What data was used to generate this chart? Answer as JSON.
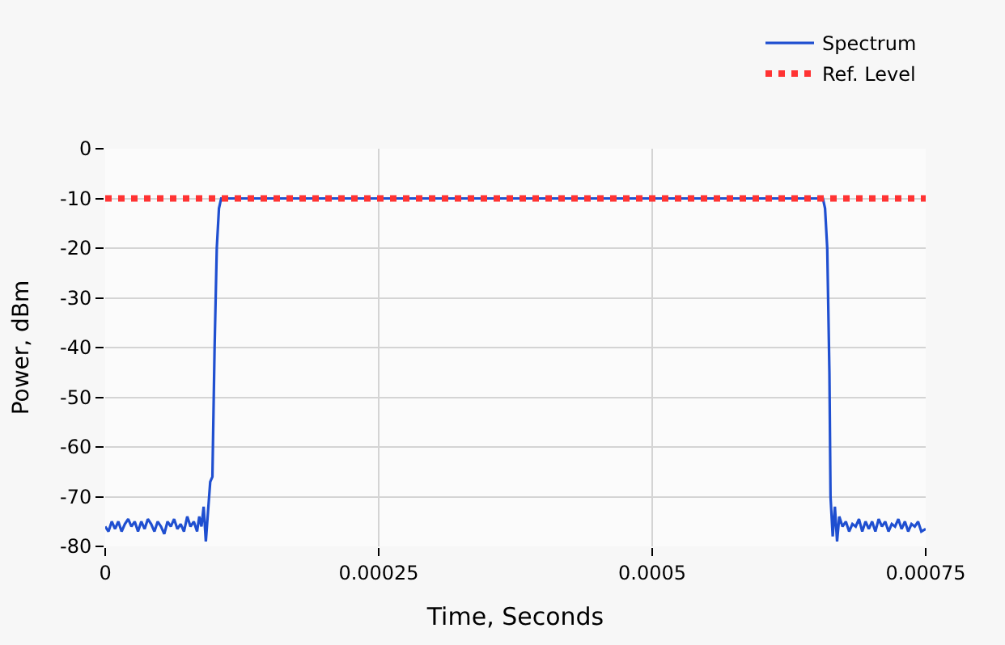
{
  "chart_data": {
    "type": "line",
    "xlabel": "Time, Seconds",
    "ylabel": "Power, dBm",
    "xlim": [
      0,
      0.00075
    ],
    "ylim": [
      -80,
      0
    ],
    "xticks": [
      0,
      0.00025,
      0.0005,
      0.00075
    ],
    "yticks": [
      0,
      -10,
      -20,
      -30,
      -40,
      -50,
      -60,
      -70,
      -80
    ],
    "grid": true,
    "legend": "top right",
    "marker": "none",
    "series": [
      {
        "name": "Spectrum",
        "color": "#1f4fd0",
        "line_style": "solid",
        "x": [
          0,
          3e-06,
          6e-06,
          9e-06,
          1.2e-05,
          1.5e-05,
          1.8e-05,
          2.1e-05,
          2.4e-05,
          2.7e-05,
          3e-05,
          3.3e-05,
          3.6e-05,
          3.9e-05,
          4.2e-05,
          4.5e-05,
          4.8e-05,
          5.1e-05,
          5.4e-05,
          5.7e-05,
          6e-05,
          6.3e-05,
          6.6e-05,
          6.9e-05,
          7.2e-05,
          7.5e-05,
          7.8e-05,
          8.1e-05,
          8.4e-05,
          8.6e-05,
          8.8e-05,
          9e-05,
          9.2e-05,
          9.4e-05,
          9.6e-05,
          9.8e-05,
          0.0001,
          0.000102,
          0.000104,
          0.000106,
          0.00038,
          0.000656,
          0.000658,
          0.00066,
          0.000662,
          0.000663,
          0.000665,
          0.000667,
          0.000669,
          0.000671,
          0.000674,
          0.000677,
          0.00068,
          0.000683,
          0.000686,
          0.000689,
          0.000692,
          0.000695,
          0.000698,
          0.000701,
          0.000704,
          0.000707,
          0.00071,
          0.000713,
          0.000716,
          0.000719,
          0.000722,
          0.000725,
          0.000728,
          0.000731,
          0.000734,
          0.000737,
          0.00074,
          0.000743,
          0.000746,
          0.00075
        ],
        "values": [
          -76,
          -77,
          -75,
          -76.5,
          -75,
          -77,
          -75.5,
          -74.5,
          -76,
          -75,
          -77,
          -75,
          -76.5,
          -74.5,
          -75.5,
          -77,
          -75,
          -76,
          -77.5,
          -75,
          -76,
          -74.5,
          -76.5,
          -75.5,
          -77,
          -74,
          -76,
          -75,
          -77,
          -74,
          -76,
          -72,
          -79,
          -73,
          -67,
          -66,
          -40,
          -20,
          -12,
          -10,
          -10,
          -10,
          -12,
          -20,
          -45,
          -70,
          -78,
          -72,
          -79,
          -74,
          -76,
          -75,
          -77,
          -75.5,
          -76,
          -74.5,
          -77,
          -75,
          -76.5,
          -75,
          -77,
          -74.5,
          -76,
          -75,
          -77,
          -75.5,
          -76,
          -74.5,
          -76.5,
          -75,
          -77,
          -75.5,
          -76,
          -75,
          -77,
          -76.5
        ]
      },
      {
        "name": "Ref. Level",
        "color": "#ff3333",
        "line_style": "dotted",
        "x": [
          0,
          0.00075
        ],
        "values": [
          -10,
          -10
        ]
      }
    ]
  }
}
